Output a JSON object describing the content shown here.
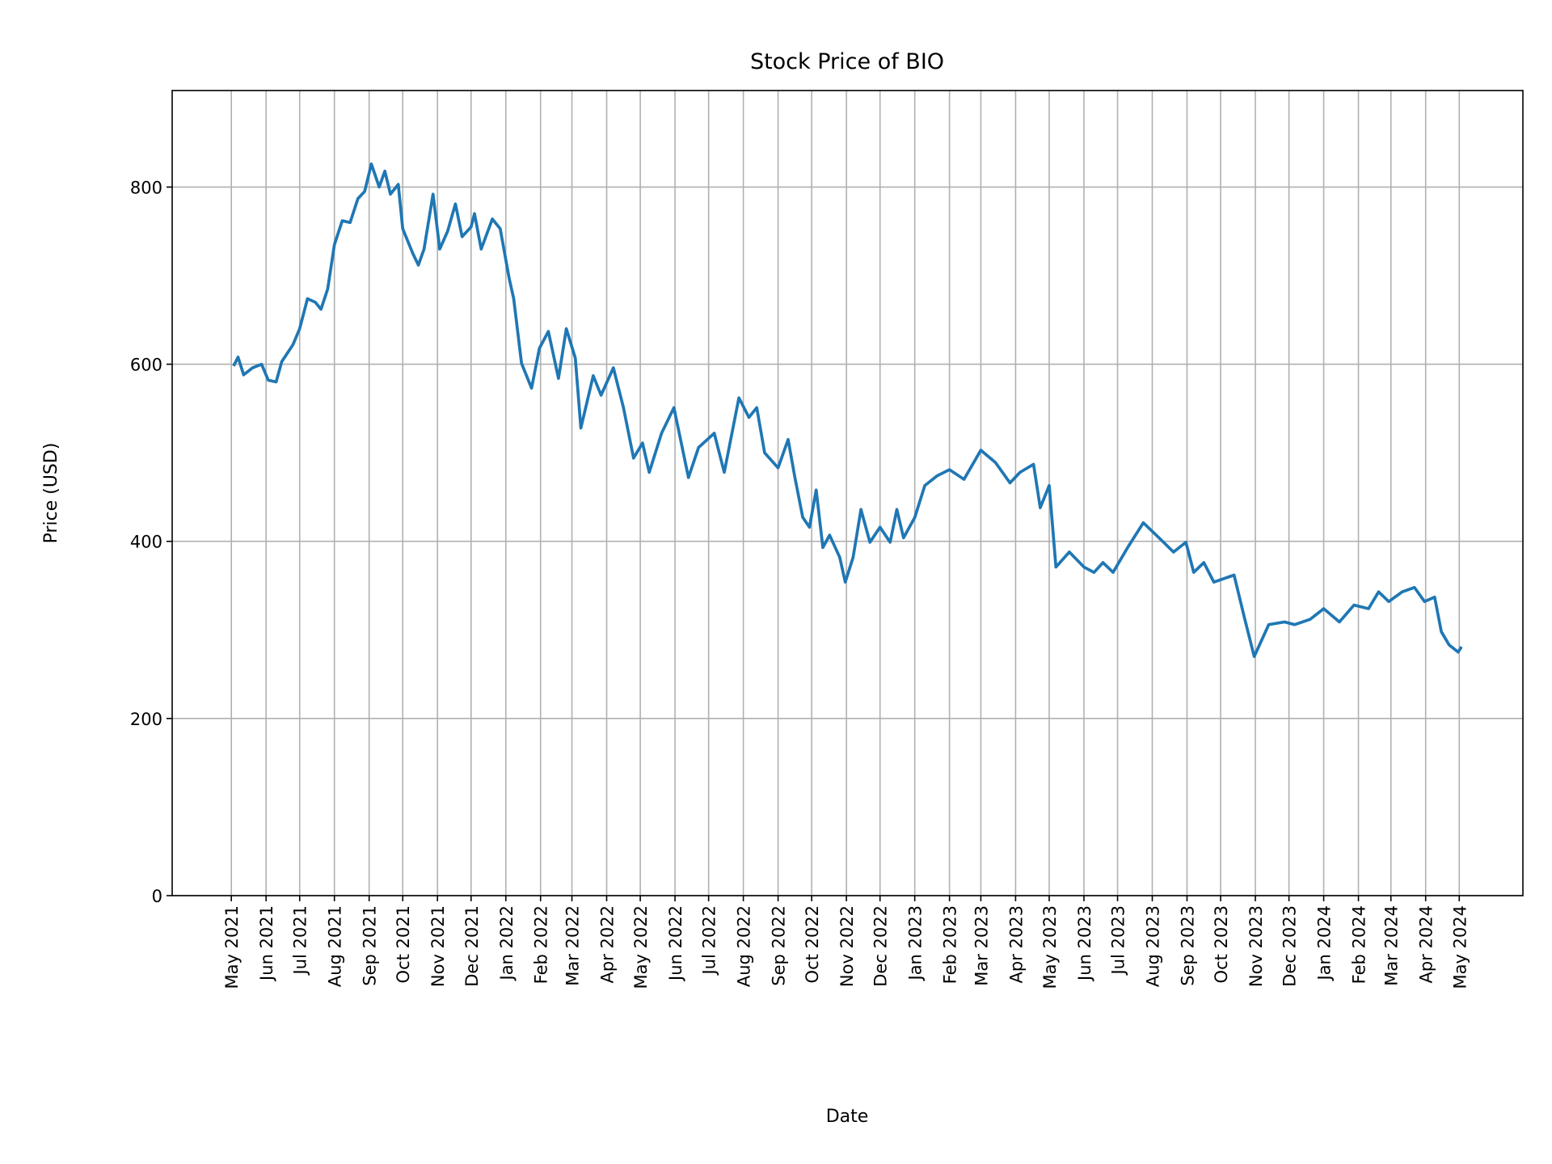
{
  "chart_data": {
    "type": "line",
    "title": "Stock Price of BIO",
    "xlabel": "Date",
    "ylabel": "Price (USD)",
    "ylim": [
      0,
      909
    ],
    "yticks": [
      0,
      200,
      400,
      600,
      800
    ],
    "grid": true,
    "line_color": "#1f77b4",
    "grid_color": "#b0b0b0",
    "xtick_dates": [
      "2021-05-01",
      "2021-06-01",
      "2021-07-01",
      "2021-08-01",
      "2021-09-01",
      "2021-10-01",
      "2021-11-01",
      "2021-12-01",
      "2022-01-01",
      "2022-02-01",
      "2022-03-01",
      "2022-04-01",
      "2022-05-01",
      "2022-06-01",
      "2022-07-01",
      "2022-08-01",
      "2022-09-01",
      "2022-10-01",
      "2022-11-01",
      "2022-12-01",
      "2023-01-01",
      "2023-02-01",
      "2023-03-01",
      "2023-04-01",
      "2023-05-01",
      "2023-06-01",
      "2023-07-01",
      "2023-08-01",
      "2023-09-01",
      "2023-10-01",
      "2023-11-01",
      "2023-12-01",
      "2024-01-01",
      "2024-02-01",
      "2024-03-01",
      "2024-04-01",
      "2024-05-01"
    ],
    "xtick_labels": [
      "May 2021",
      "Jun 2021",
      "Jul 2021",
      "Aug 2021",
      "Sep 2021",
      "Oct 2021",
      "Nov 2021",
      "Dec 2021",
      "Jan 2022",
      "Feb 2022",
      "Mar 2022",
      "Apr 2022",
      "May 2022",
      "Jun 2022",
      "Jul 2022",
      "Aug 2022",
      "Sep 2022",
      "Oct 2022",
      "Nov 2022",
      "Dec 2022",
      "Jan 2023",
      "Feb 2023",
      "Mar 2023",
      "Apr 2023",
      "May 2023",
      "Jun 2023",
      "Jul 2023",
      "Aug 2023",
      "Sep 2023",
      "Oct 2023",
      "Nov 2023",
      "Dec 2023",
      "Jan 2024",
      "Feb 2024",
      "Mar 2024",
      "Apr 2024",
      "May 2024"
    ],
    "x": [
      "2021-05-03",
      "2021-05-07",
      "2021-05-12",
      "2021-05-20",
      "2021-05-28",
      "2021-06-03",
      "2021-06-10",
      "2021-06-15",
      "2021-06-25",
      "2021-07-01",
      "2021-07-08",
      "2021-07-15",
      "2021-07-20",
      "2021-07-26",
      "2021-08-01",
      "2021-08-08",
      "2021-08-15",
      "2021-08-22",
      "2021-08-28",
      "2021-09-03",
      "2021-09-10",
      "2021-09-15",
      "2021-09-20",
      "2021-09-27",
      "2021-10-01",
      "2021-10-10",
      "2021-10-15",
      "2021-10-20",
      "2021-10-28",
      "2021-11-03",
      "2021-11-10",
      "2021-11-17",
      "2021-11-23",
      "2021-12-01",
      "2021-12-04",
      "2021-12-10",
      "2021-12-20",
      "2021-12-27",
      "2022-01-04",
      "2022-01-08",
      "2022-01-15",
      "2022-01-24",
      "2022-01-31",
      "2022-02-08",
      "2022-02-17",
      "2022-02-24",
      "2022-03-04",
      "2022-03-09",
      "2022-03-20",
      "2022-03-27",
      "2022-04-07",
      "2022-04-16",
      "2022-04-25",
      "2022-05-03",
      "2022-05-09",
      "2022-05-20",
      "2022-05-31",
      "2022-06-13",
      "2022-06-22",
      "2022-07-06",
      "2022-07-15",
      "2022-07-28",
      "2022-08-06",
      "2022-08-13",
      "2022-08-20",
      "2022-09-01",
      "2022-09-10",
      "2022-09-16",
      "2022-09-23",
      "2022-09-29",
      "2022-10-05",
      "2022-10-11",
      "2022-10-17",
      "2022-10-26",
      "2022-10-31",
      "2022-11-07",
      "2022-11-14",
      "2022-11-22",
      "2022-12-01",
      "2022-12-10",
      "2022-12-16",
      "2022-12-22",
      "2023-01-01",
      "2023-01-10",
      "2023-01-21",
      "2023-02-01",
      "2023-02-14",
      "2023-03-01",
      "2023-03-14",
      "2023-03-27",
      "2023-04-05",
      "2023-04-17",
      "2023-04-23",
      "2023-05-01",
      "2023-05-07",
      "2023-05-19",
      "2023-06-01",
      "2023-06-10",
      "2023-06-18",
      "2023-06-27",
      "2023-07-10",
      "2023-07-24",
      "2023-08-07",
      "2023-08-20",
      "2023-08-31",
      "2023-09-07",
      "2023-09-16",
      "2023-09-25",
      "2023-10-13",
      "2023-10-22",
      "2023-10-31",
      "2023-11-13",
      "2023-11-27",
      "2023-12-06",
      "2023-12-20",
      "2024-01-01",
      "2024-01-15",
      "2024-01-28",
      "2024-02-10",
      "2024-02-19",
      "2024-02-28",
      "2024-03-11",
      "2024-03-22",
      "2024-03-31",
      "2024-04-09",
      "2024-04-15",
      "2024-04-22",
      "2024-04-30",
      "2024-05-03"
    ],
    "y": [
      598,
      608,
      588,
      596,
      600,
      582,
      580,
      603,
      622,
      640,
      674,
      670,
      662,
      685,
      735,
      762,
      760,
      787,
      795,
      826,
      800,
      818,
      792,
      803,
      753,
      725,
      712,
      730,
      792,
      730,
      750,
      781,
      744,
      755,
      770,
      730,
      764,
      753,
      697,
      674,
      601,
      573,
      618,
      637,
      584,
      640,
      607,
      528,
      587,
      565,
      596,
      551,
      494,
      511,
      478,
      522,
      551,
      472,
      506,
      522,
      478,
      562,
      540,
      551,
      500,
      483,
      515,
      472,
      427,
      416,
      458,
      393,
      407,
      382,
      354,
      382,
      436,
      399,
      416,
      399,
      436,
      404,
      427,
      463,
      474,
      481,
      470,
      503,
      489,
      466,
      478,
      487,
      438,
      463,
      371,
      388,
      371,
      365,
      376,
      365,
      393,
      421,
      404,
      388,
      399,
      365,
      376,
      354,
      362,
      315,
      270,
      306,
      309,
      306,
      312,
      324,
      309,
      328,
      324,
      343,
      332,
      343,
      348,
      332,
      337,
      298,
      283,
      275,
      281
    ]
  }
}
